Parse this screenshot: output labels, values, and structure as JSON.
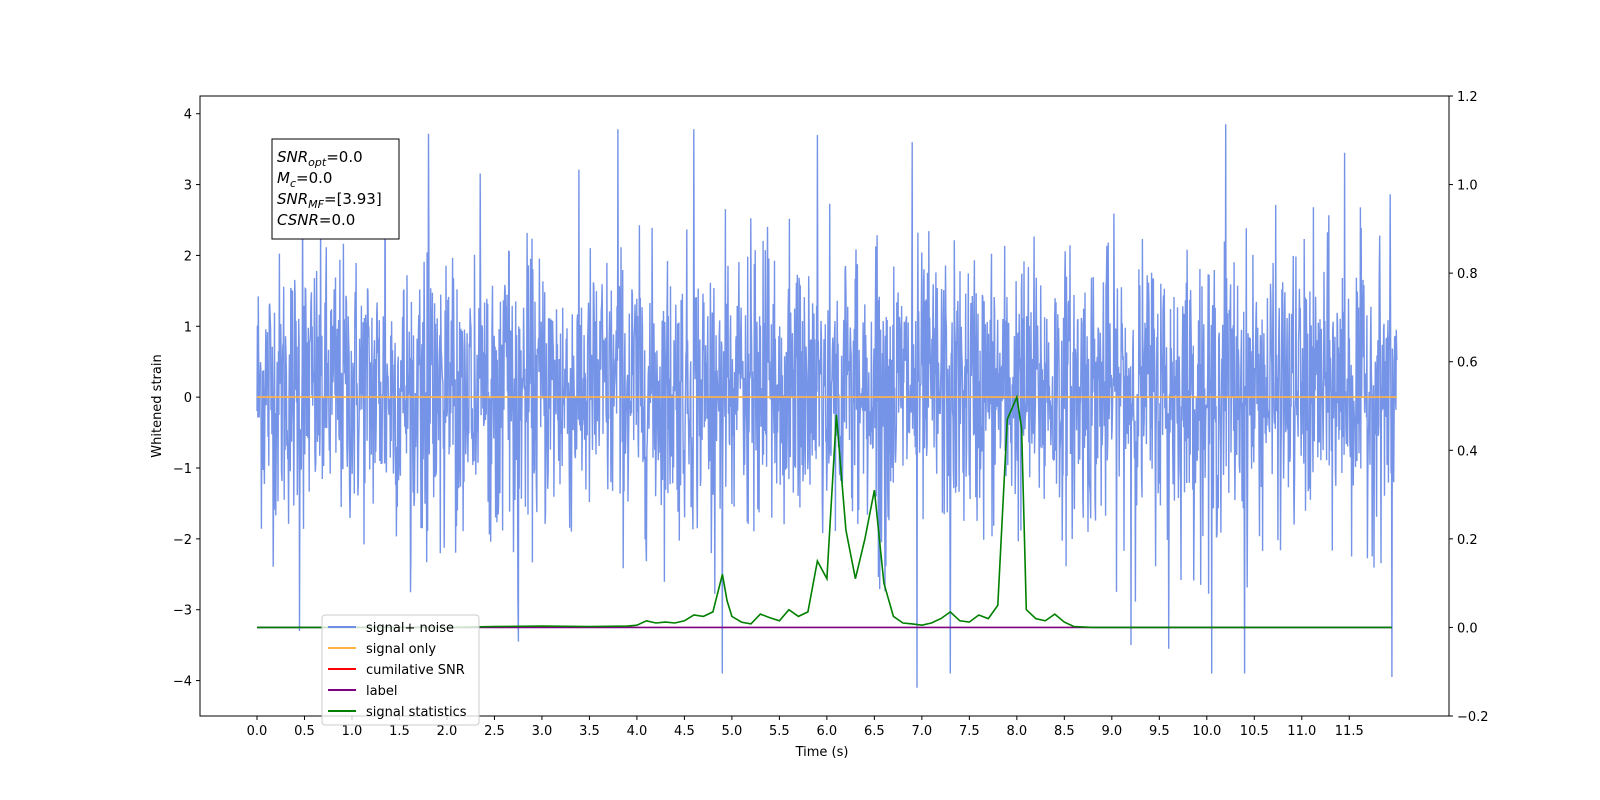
{
  "chart_data": {
    "type": "line",
    "xlabel": "Time (s)",
    "ylabel": "Whitened strain",
    "xlim": [
      -0.6,
      12.55
    ],
    "ylim": [
      -4.5,
      4.25
    ],
    "y2lim": [
      -0.2,
      1.2
    ],
    "x_ticks": [
      0.0,
      0.5,
      1.0,
      1.5,
      2.0,
      2.5,
      3.0,
      3.5,
      4.0,
      4.5,
      5.0,
      5.5,
      6.0,
      6.5,
      7.0,
      7.5,
      8.0,
      8.5,
      9.0,
      9.5,
      10.0,
      10.5,
      11.0,
      11.5
    ],
    "x_tick_labels": [
      "0.0",
      "0.5",
      "1.0",
      "1.5",
      "2.0",
      "2.5",
      "3.0",
      "3.5",
      "4.0",
      "4.5",
      "5.0",
      "5.5",
      "6.0",
      "6.5",
      "7.0",
      "7.5",
      "8.0",
      "8.5",
      "9.0",
      "9.5",
      "10.0",
      "10.5",
      "11.0",
      "11.5"
    ],
    "y_ticks": [
      -4,
      -3,
      -2,
      -1,
      0,
      1,
      2,
      3,
      4
    ],
    "y_tick_labels": [
      "−4",
      "−3",
      "−2",
      "−1",
      "0",
      "1",
      "2",
      "3",
      "4"
    ],
    "y2_ticks": [
      -0.2,
      0.0,
      0.2,
      0.4,
      0.6,
      0.8,
      1.0,
      1.2
    ],
    "y2_tick_labels": [
      "−0.2",
      "0.0",
      "0.2",
      "0.4",
      "0.6",
      "0.8",
      "1.0",
      "1.2"
    ],
    "series": [
      {
        "name": "signal+ noise",
        "axis": "left",
        "color": "#6f8ee6",
        "noise": {
          "x_start": 0.0,
          "x_end": 12.0,
          "approx_std": 1.0,
          "typical_min": -2.9,
          "typical_max": 3.8
        },
        "spikes_up": [
          [
            0.48,
            2.9
          ],
          [
            1.35,
            3.5
          ],
          [
            3.8,
            3.78
          ],
          [
            4.6,
            3.78
          ],
          [
            5.9,
            3.7
          ],
          [
            6.9,
            3.6
          ],
          [
            10.2,
            3.85
          ],
          [
            11.45,
            3.45
          ]
        ],
        "spikes_down": [
          [
            0.45,
            -3.3
          ],
          [
            2.75,
            -3.45
          ],
          [
            4.9,
            -3.9
          ],
          [
            6.95,
            -4.1
          ],
          [
            7.3,
            -3.9
          ],
          [
            9.2,
            -3.5
          ],
          [
            9.6,
            -3.55
          ],
          [
            10.05,
            -3.9
          ],
          [
            10.4,
            -3.9
          ],
          [
            11.95,
            -3.95
          ]
        ]
      },
      {
        "name": "signal only",
        "axis": "left",
        "color": "#ffb347",
        "x": [
          0.0,
          12.0
        ],
        "y": [
          0.0,
          0.0
        ]
      },
      {
        "name": "cumilative SNR",
        "axis": "right",
        "color": "#ff0000",
        "x": [],
        "y": []
      },
      {
        "name": "label",
        "axis": "right",
        "color": "#800080",
        "x": [
          0.0,
          11.95
        ],
        "y": [
          0.0,
          0.0
        ]
      },
      {
        "name": "signal statistics",
        "axis": "right",
        "color": "#008000",
        "x": [
          0.0,
          1.0,
          2.0,
          2.5,
          3.0,
          3.5,
          3.9,
          4.0,
          4.1,
          4.2,
          4.3,
          4.4,
          4.5,
          4.6,
          4.7,
          4.8,
          4.9,
          4.95,
          5.0,
          5.1,
          5.2,
          5.3,
          5.4,
          5.5,
          5.6,
          5.7,
          5.8,
          5.9,
          6.0,
          6.1,
          6.2,
          6.3,
          6.4,
          6.5,
          6.6,
          6.7,
          6.8,
          6.9,
          7.0,
          7.1,
          7.2,
          7.3,
          7.4,
          7.5,
          7.6,
          7.7,
          7.8,
          7.9,
          8.0,
          8.05,
          8.1,
          8.2,
          8.3,
          8.4,
          8.5,
          8.6,
          8.8,
          9.5,
          10.5,
          11.95
        ],
        "y": [
          0.0,
          0.0,
          0.0,
          0.002,
          0.003,
          0.002,
          0.003,
          0.005,
          0.015,
          0.01,
          0.012,
          0.01,
          0.015,
          0.028,
          0.025,
          0.035,
          0.12,
          0.06,
          0.025,
          0.012,
          0.008,
          0.03,
          0.022,
          0.015,
          0.04,
          0.025,
          0.035,
          0.15,
          0.11,
          0.48,
          0.22,
          0.11,
          0.2,
          0.31,
          0.1,
          0.025,
          0.01,
          0.008,
          0.005,
          0.01,
          0.02,
          0.035,
          0.015,
          0.012,
          0.028,
          0.02,
          0.05,
          0.47,
          0.52,
          0.45,
          0.04,
          0.02,
          0.015,
          0.03,
          0.012,
          0.002,
          0.0,
          0.0,
          0.0,
          0.0
        ]
      }
    ],
    "legend": {
      "placement": "lower-left",
      "labels": [
        "signal+ noise",
        "signal only",
        "cumilative SNR",
        "label",
        "signal statistics"
      ]
    },
    "annotation": {
      "lines": [
        {
          "sym": "SNR",
          "sub": "opt",
          "value": "=0.0"
        },
        {
          "sym": "M",
          "sub": "c",
          "value": "=0.0"
        },
        {
          "sym": "SNR",
          "sub": "MF",
          "value": "=[3.93]"
        },
        {
          "sym": "CSNR",
          "sub": "",
          "value": "=0.0"
        }
      ]
    },
    "grid": false
  }
}
